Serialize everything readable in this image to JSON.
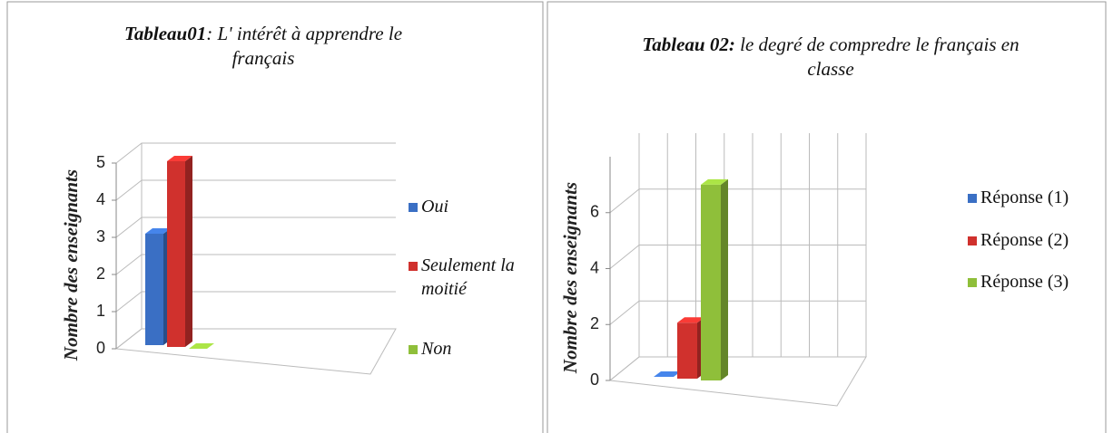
{
  "chart_data": [
    {
      "type": "bar",
      "title_label": "Tableau01",
      "title": ": L' intérêt à apprendre le français",
      "ylabel": "Nombre des enseignants",
      "ylim": [
        0,
        5
      ],
      "yticks": [
        0,
        1,
        2,
        3,
        4,
        5
      ],
      "grid": true,
      "legend": "right",
      "series": [
        {
          "name": "Oui",
          "color": "#3a6fc4",
          "values": [
            3
          ]
        },
        {
          "name": "Seulement la moitié",
          "color": "#d0312d",
          "values": [
            5
          ]
        },
        {
          "name": "Non",
          "color": "#8fbf3a",
          "values": [
            0
          ]
        }
      ]
    },
    {
      "type": "bar",
      "title_label": "Tableau 02:",
      "title": " le degré de compredre le français en classe",
      "ylabel": "Nombre des enseignants",
      "ylim": [
        0,
        8
      ],
      "yticks": [
        0,
        2,
        4,
        6
      ],
      "grid": true,
      "legend": "right",
      "series": [
        {
          "name": "Réponse (1)",
          "color": "#3a6fc4",
          "values": [
            0
          ]
        },
        {
          "name": "Réponse (2)",
          "color": "#d0312d",
          "values": [
            2
          ]
        },
        {
          "name": "Réponse (3)",
          "color": "#8fbf3a",
          "values": [
            7
          ]
        }
      ]
    }
  ]
}
